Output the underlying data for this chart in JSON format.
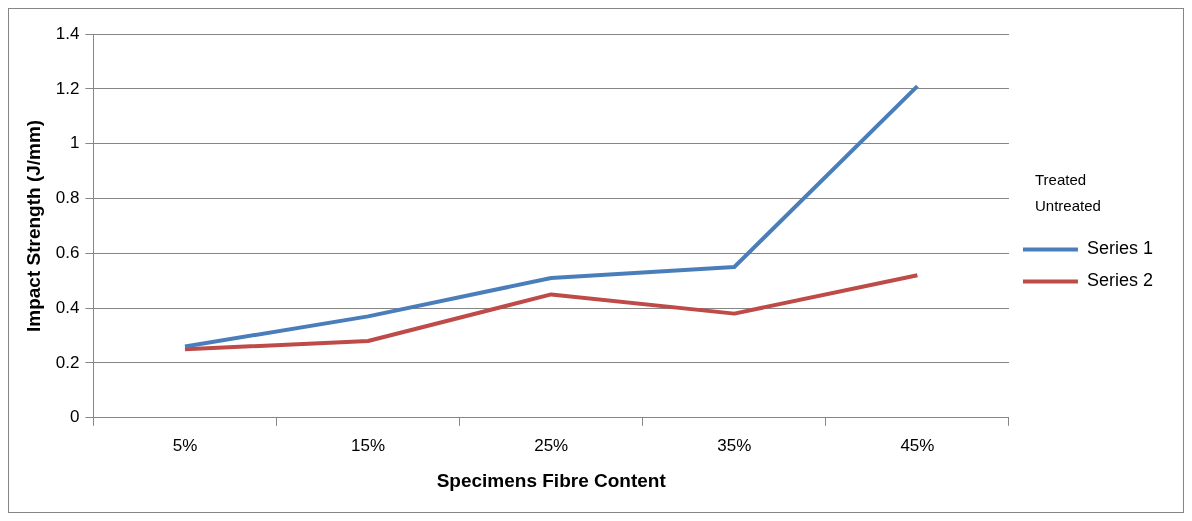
{
  "chart_data": {
    "type": "line",
    "xlabel": "Specimens Fibre Content",
    "ylabel": "Impact Strength (J/mm)",
    "categories": [
      "5%",
      "15%",
      "25%",
      "35%",
      "45%"
    ],
    "series": [
      {
        "name": "Series 1",
        "color": "#4a7ebb",
        "values": [
          0.26,
          0.37,
          0.51,
          0.55,
          1.21
        ]
      },
      {
        "name": "Series 2",
        "color": "#be4b48",
        "values": [
          0.25,
          0.28,
          0.45,
          0.38,
          0.52
        ]
      }
    ],
    "ylim": [
      0,
      1.4
    ],
    "yticks": [
      0,
      0.2,
      0.4,
      0.6,
      0.8,
      1,
      1.2,
      1.4
    ],
    "grid": "y",
    "legend": "right",
    "marker": "none",
    "line_style": "solid",
    "annotations": [
      "Treated",
      "Untreated"
    ]
  }
}
